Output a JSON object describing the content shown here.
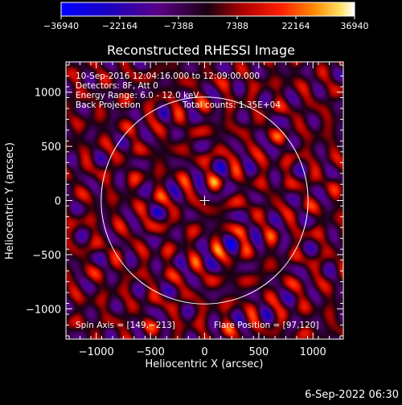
{
  "chart_data": {
    "type": "heatmap",
    "title": "Reconstructed RHESSI Image",
    "xlabel": "Heliocentric X (arcsec)",
    "ylabel": "Heliocentric Y (arcsec)",
    "xlim": [
      -1280,
      1280
    ],
    "ylim": [
      -1280,
      1280
    ],
    "xticks": [
      -1000,
      -500,
      0,
      500,
      1000
    ],
    "yticks": [
      -1000,
      -500,
      0,
      500,
      1000
    ],
    "xtick_labels": [
      "−1000",
      "−500",
      "0",
      "500",
      "1000"
    ],
    "ytick_labels": [
      "−1000",
      "−500",
      "0",
      "500",
      "1000"
    ],
    "colorbar": {
      "range": [
        -36940,
        36940
      ],
      "ticks": [
        -36940,
        -22164,
        -7388,
        7388,
        22164,
        36940
      ],
      "tick_labels": [
        "−36940",
        "−22164",
        "−7388",
        "7388",
        "22164",
        "36940"
      ]
    },
    "info_lines": [
      "10-Sep-2016 12:04:16.000 to 12:09:00.000",
      "Detectors: 8F, Att 0",
      "Energy Range: 6.0 - 12.0 keV",
      "Back Projection"
    ],
    "total_counts": "Total counts: 1.35E+04",
    "spin_axis": "Spin Axis = [149,−213]",
    "flare_position": "Flare Position = [97,120]",
    "solar_radius_arcsec": 955,
    "center_marker": [
      0,
      0
    ],
    "sources": [
      {
        "x": 105,
        "y": 160,
        "sign": "positive"
      },
      {
        "x": 130,
        "y": -440,
        "sign": "positive"
      },
      {
        "x": 210,
        "y": -400,
        "sign": "negative"
      }
    ]
  },
  "footer": {
    "date": "6-Sep-2022 06:30"
  },
  "colors": {
    "background": "#000000",
    "circle": "#ffffff",
    "text": "#ffffff"
  }
}
